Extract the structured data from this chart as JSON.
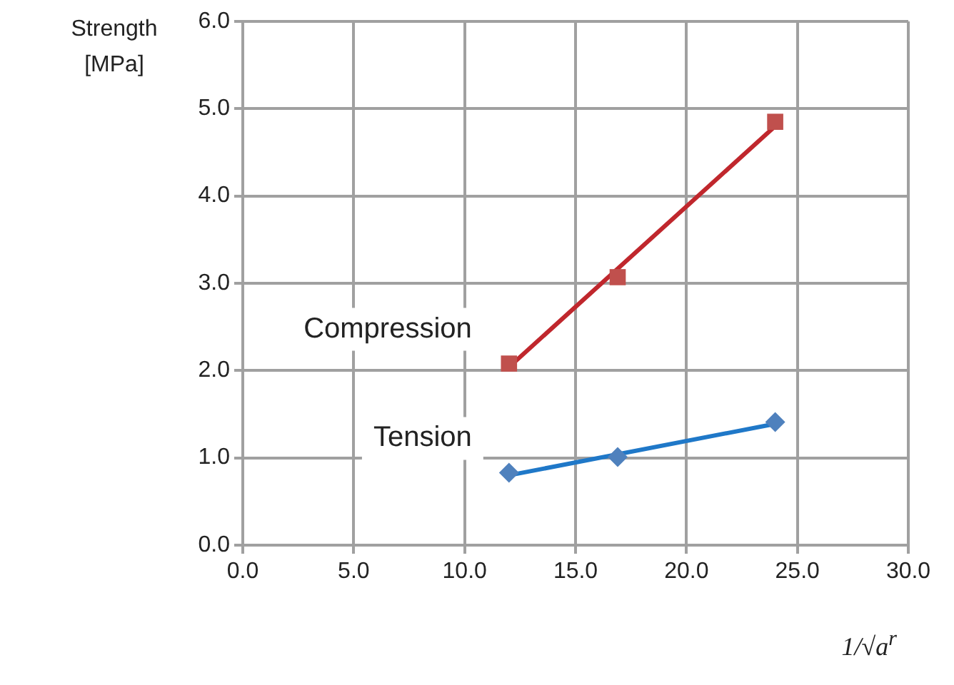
{
  "chart_data": {
    "type": "scatter",
    "xlabel": "1/√a$^{r}$",
    "ylabel": "Strength [MPa]",
    "xlim": [
      0,
      30
    ],
    "xticks": [
      {
        "value": 0,
        "label": "0.0"
      },
      {
        "value": 5,
        "label": "5.0"
      },
      {
        "value": 10,
        "label": "10.0"
      },
      {
        "value": 15,
        "label": "15.0"
      },
      {
        "value": 20,
        "label": "20.0"
      },
      {
        "value": 25,
        "label": "25.0"
      },
      {
        "value": 30,
        "label": "30.0"
      }
    ],
    "ylim": [
      0,
      6
    ],
    "yticks": [
      {
        "value": 0,
        "label": "0.0"
      },
      {
        "value": 1,
        "label": "1.0"
      },
      {
        "value": 2,
        "label": "2.0"
      },
      {
        "value": 3,
        "label": "3.0"
      },
      {
        "value": 4,
        "label": "4.0"
      },
      {
        "value": 5,
        "label": "5.0"
      },
      {
        "value": 6,
        "label": "6.0"
      }
    ],
    "grid": true,
    "legend": false,
    "series": [
      {
        "name": "Compression",
        "marker": "square",
        "color": "#c0504d",
        "x": [
          12,
          16.9,
          24
        ],
        "values": [
          2.08,
          3.07,
          4.85
        ]
      },
      {
        "name": "Tension",
        "marker": "diamond",
        "color": "#4f81bd",
        "x": [
          12,
          16.9,
          24
        ],
        "values": [
          0.83,
          1.01,
          1.41
        ]
      },
      {
        "type": "line",
        "marker": "none",
        "color": "#c0272d",
        "x": [
          12,
          24
        ],
        "values": [
          2.04,
          4.8
        ]
      },
      {
        "type": "line",
        "marker": "none",
        "color": "#1f78c8",
        "x": [
          12,
          24
        ],
        "values": [
          0.8,
          1.39
        ]
      }
    ]
  }
}
